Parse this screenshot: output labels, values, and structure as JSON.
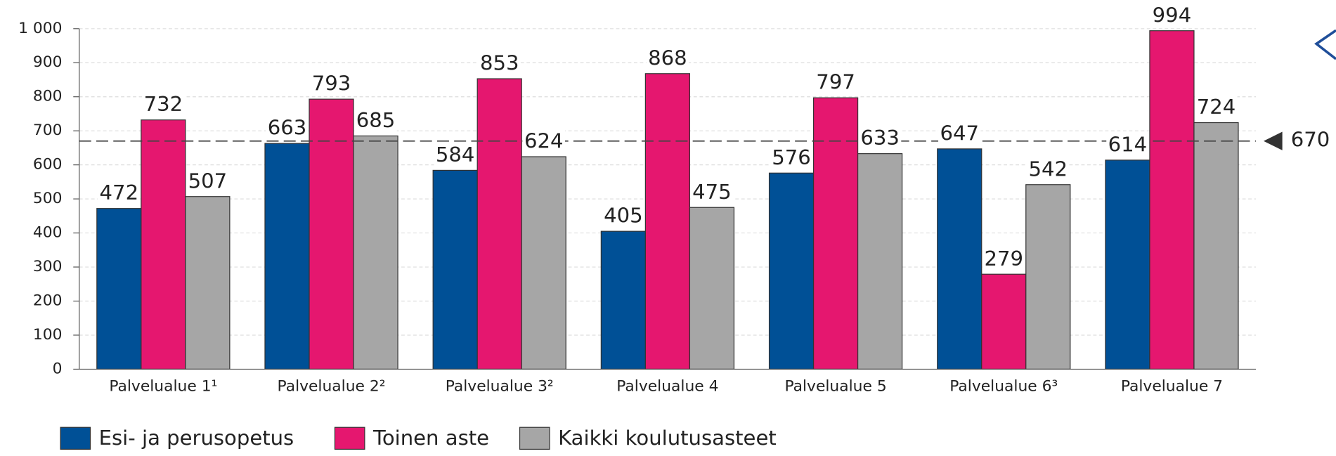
{
  "chart_data": {
    "type": "bar",
    "categories": [
      "Palvelualue 1¹",
      "Palvelualue 2²",
      "Palvelualue 3²",
      "Palvelualue 4",
      "Palvelualue 5",
      "Palvelualue 6³",
      "Palvelualue 7"
    ],
    "series": [
      {
        "name": "Esi- ja perusopetus",
        "color": "#005096",
        "values": [
          472,
          663,
          584,
          405,
          576,
          647,
          614
        ]
      },
      {
        "name": "Toinen aste",
        "color": "#e5176f",
        "values": [
          732,
          793,
          853,
          868,
          797,
          279,
          994
        ]
      },
      {
        "name": "Kaikki koulutusasteet",
        "color": "#a6a6a6",
        "values": [
          507,
          685,
          624,
          475,
          633,
          542,
          724
        ]
      }
    ],
    "ylim": [
      0,
      1000
    ],
    "yticks": [
      0,
      100,
      200,
      300,
      400,
      500,
      600,
      700,
      800,
      900,
      {
        "value": 1000,
        "label": "1 000"
      }
    ],
    "grid": true,
    "reference_line": {
      "value": 670
    },
    "legend": "bottom-left"
  }
}
